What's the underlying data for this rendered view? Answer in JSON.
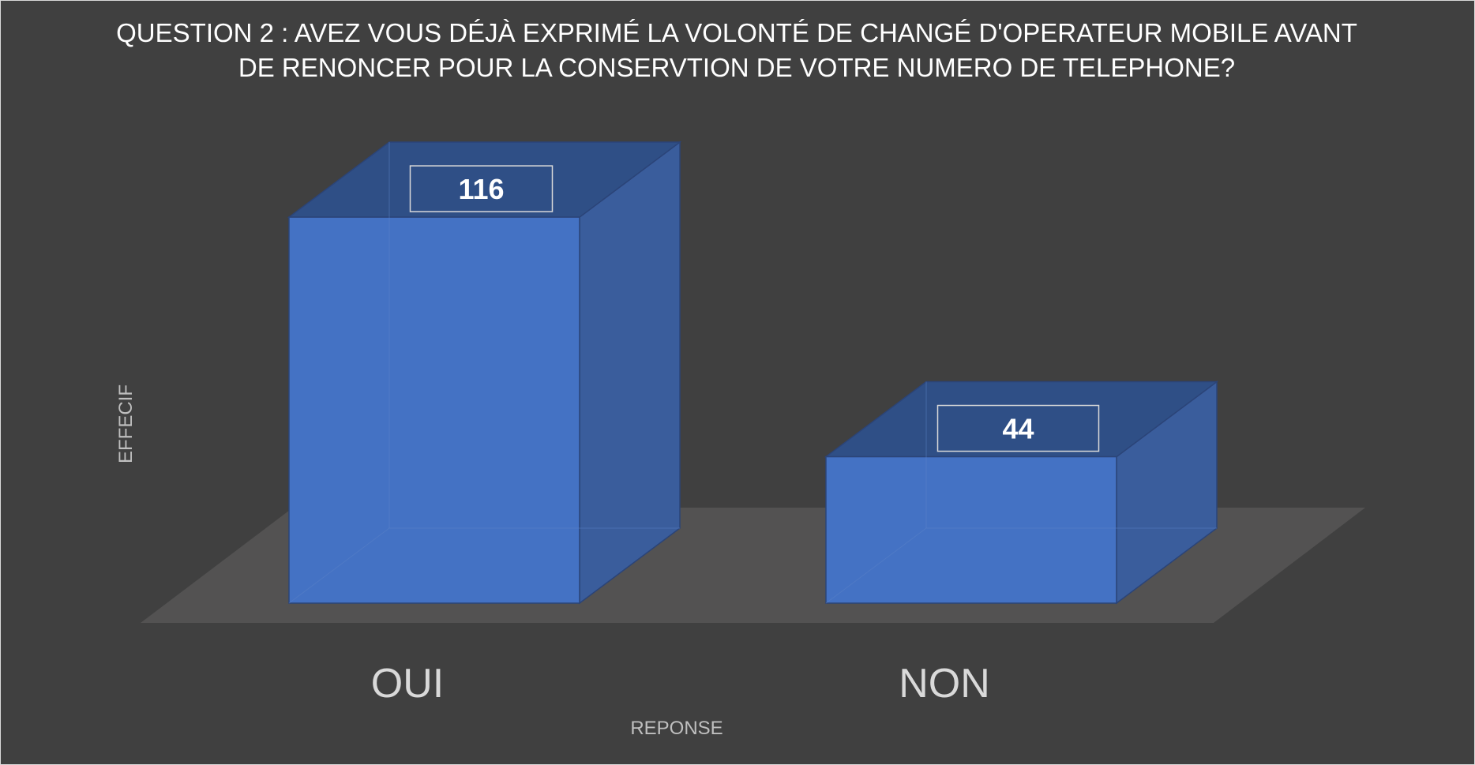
{
  "chart_data": {
    "type": "bar",
    "style": "3d-column",
    "title_lines": [
      "QUESTION 2 : AVEZ VOUS DÉJÀ EXPRIMÉ LA VOLONTÉ DE CHANGÉ D'OPERATEUR MOBILE AVANT",
      "DE RENONCER POUR LA CONSERVTION DE VOTRE NUMERO DE TELEPHONE?"
    ],
    "categories": [
      "OUI",
      "NON"
    ],
    "values": [
      116,
      44
    ],
    "xlabel": "REPONSE",
    "ylabel": "EFFECIF",
    "grid": false,
    "legend": "none"
  },
  "colors": {
    "background": "#404040",
    "floor": "#535252",
    "bar_front": "#4472c4",
    "bar_side": "#3a5d9c",
    "bar_top": "#2f4f86",
    "bar_edge": "#2b4478",
    "label_box": "#2f4f86",
    "label_border": "#d9d9d9"
  }
}
